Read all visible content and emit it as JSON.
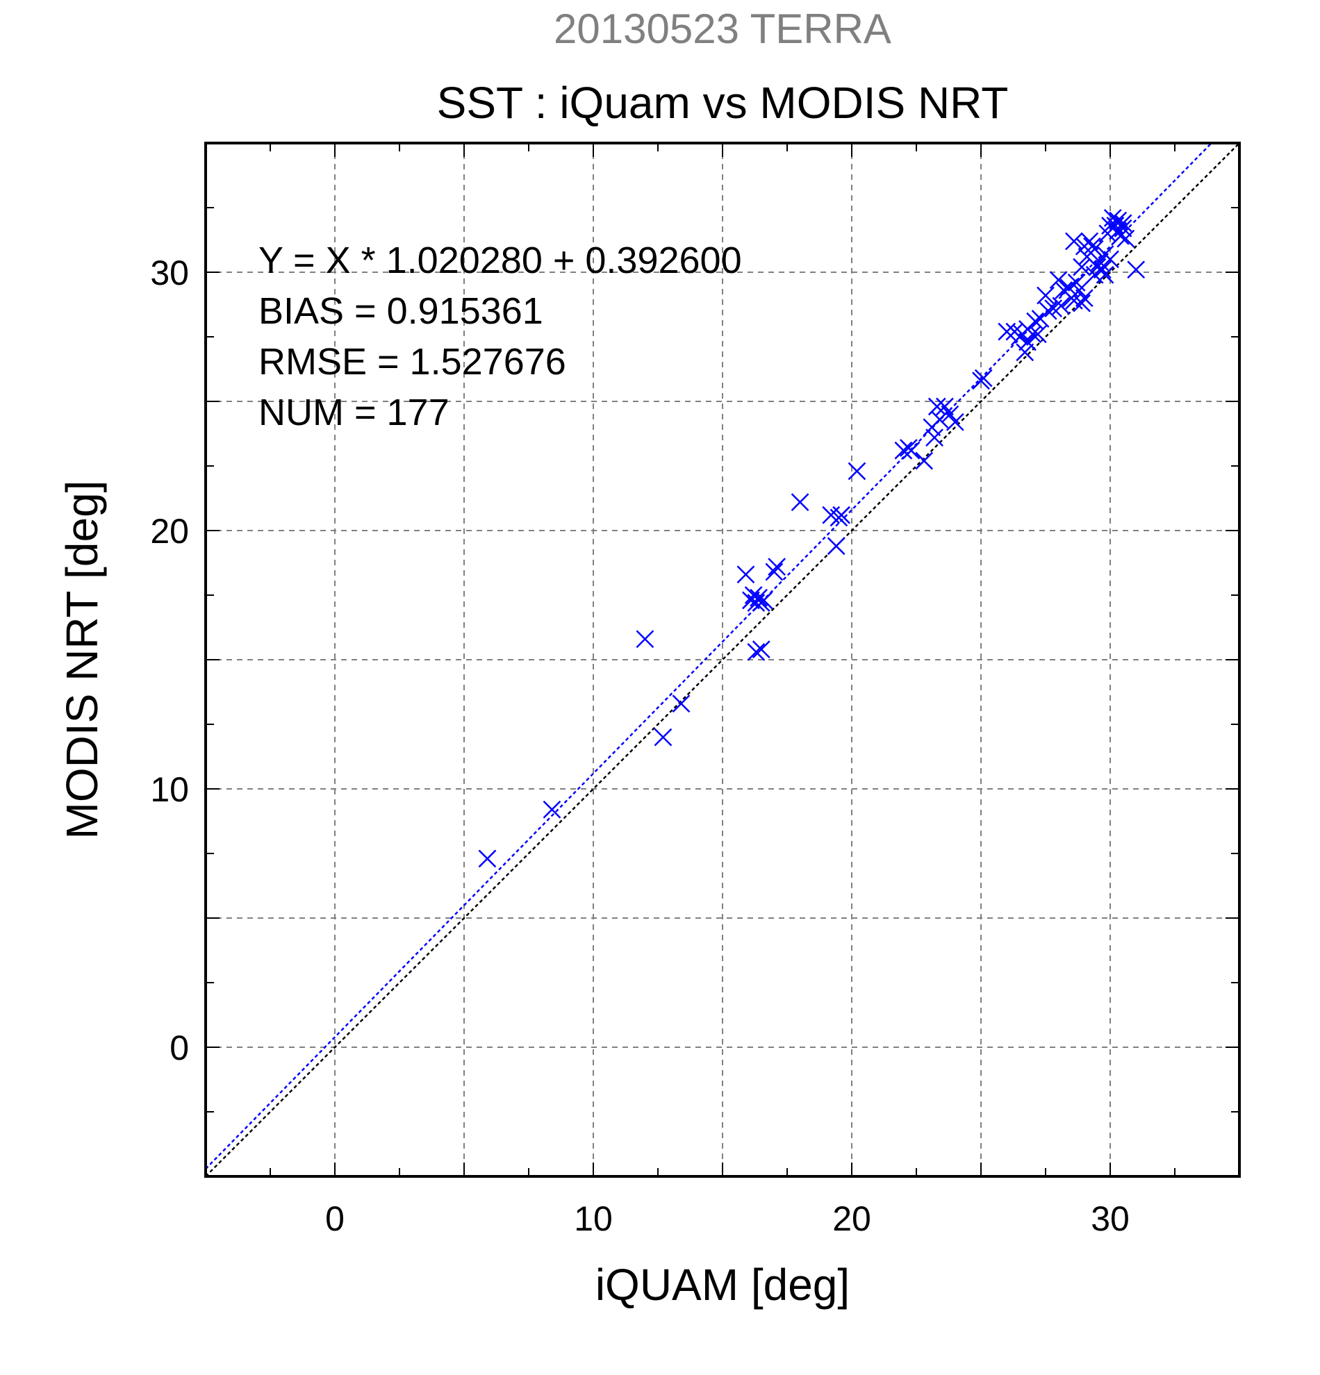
{
  "chart_data": {
    "type": "scatter",
    "suptitle": "20130523 TERRA",
    "title": "SST : iQuam vs MODIS NRT",
    "xlabel": "iQUAM [deg]",
    "ylabel": "MODIS NRT [deg]",
    "xlim": [
      -5,
      35
    ],
    "ylim": [
      -5,
      35
    ],
    "xticks": [
      0,
      10,
      20,
      30
    ],
    "yticks": [
      0,
      10,
      20,
      30
    ],
    "grid": true,
    "grid_step": 5,
    "stats": [
      "Y = X * 1.020280 + 0.392600",
      "BIAS = 0.915361",
      "RMSE = 1.527676",
      "NUM = 177"
    ],
    "regression": {
      "slope": 1.02028,
      "intercept": 0.3926
    },
    "marker": "x",
    "colors": {
      "points": "#0000ff",
      "regression_line": "#0000ff",
      "one_to_one_line": "#000000",
      "grid": "#808080",
      "suptitle": "#808080"
    },
    "series": [
      {
        "x": [
          5.9,
          8.4,
          12.0,
          12.7,
          13.4,
          15.9,
          16.1,
          16.2,
          16.3,
          16.4,
          16.5,
          16.6,
          16.3,
          16.5,
          17.0,
          17.1,
          18.0,
          19.2,
          19.4,
          19.5,
          19.6,
          20.2,
          22.0,
          22.2,
          22.3,
          22.8,
          23.1,
          23.2,
          23.3,
          23.4,
          23.6,
          23.8,
          24.0,
          25.0,
          25.1,
          26.0,
          26.3,
          26.5,
          26.6,
          26.7,
          26.8,
          27.0,
          27.1,
          27.3,
          27.5,
          27.6,
          27.8,
          28.0,
          28.2,
          28.4,
          28.5,
          28.6,
          28.7,
          28.8,
          28.9,
          29.0,
          29.1,
          29.2,
          29.3,
          29.4,
          29.5,
          29.6,
          29.7,
          29.8,
          29.9,
          30.0,
          30.1,
          30.2,
          30.3,
          30.4,
          30.5,
          30.6,
          31.0,
          28.6,
          29.0,
          28.9,
          29.8,
          30.3,
          30.5,
          26.8,
          27.2,
          28.1,
          29.4,
          30.0
        ],
        "y": [
          7.3,
          9.2,
          15.8,
          12.0,
          13.3,
          18.3,
          17.3,
          17.5,
          17.2,
          17.4,
          17.2,
          17.3,
          15.3,
          15.4,
          18.4,
          18.6,
          21.1,
          20.6,
          19.4,
          20.5,
          20.6,
          22.3,
          23.1,
          23.2,
          23.1,
          22.7,
          24.0,
          23.6,
          24.8,
          24.3,
          24.8,
          24.5,
          24.2,
          25.8,
          25.9,
          27.7,
          27.7,
          27.5,
          27.6,
          26.9,
          27.8,
          27.6,
          28.1,
          28.2,
          29.1,
          28.5,
          28.6,
          29.7,
          29.3,
          29.4,
          29.0,
          28.9,
          29.6,
          29.3,
          30.2,
          31.0,
          30.6,
          31.2,
          31.0,
          30.9,
          30.2,
          30.4,
          30.1,
          30.7,
          31.5,
          31.8,
          32.1,
          31.8,
          32.0,
          31.4,
          31.7,
          31.3,
          30.1,
          31.2,
          29.0,
          28.8,
          29.9,
          31.6,
          31.9,
          27.3,
          27.6,
          28.7,
          29.9,
          30.5
        ]
      }
    ]
  }
}
